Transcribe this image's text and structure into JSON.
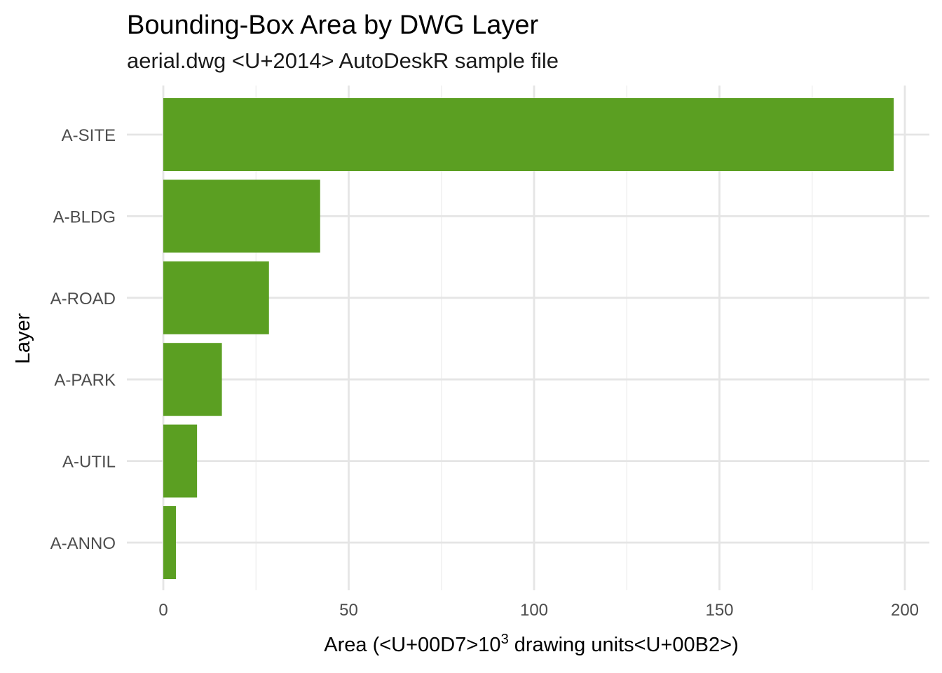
{
  "chart_data": {
    "type": "bar",
    "orientation": "horizontal",
    "title": "Bounding-Box Area by DWG Layer",
    "subtitle": "aerial.dwg <U+2014> AutoDeskR sample file",
    "xlabel_prefix": "Area (<U+00D7>10",
    "xlabel_superscript": "3",
    "xlabel_suffix": " drawing units<U+00B2>)",
    "ylabel": "Layer",
    "categories": [
      "A-SITE",
      "A-BLDG",
      "A-ROAD",
      "A-PARK",
      "A-UTIL",
      "A-ANNO"
    ],
    "values": [
      197,
      42.3,
      28.5,
      15.8,
      9.1,
      3.4
    ],
    "xlim": [
      0,
      200
    ],
    "x_ticks": [
      0,
      50,
      100,
      150,
      200
    ],
    "x_tick_labels": [
      "0",
      "50",
      "100",
      "150",
      "200"
    ],
    "bar_color": "#5b9f22",
    "grid": true,
    "legend": "none"
  }
}
